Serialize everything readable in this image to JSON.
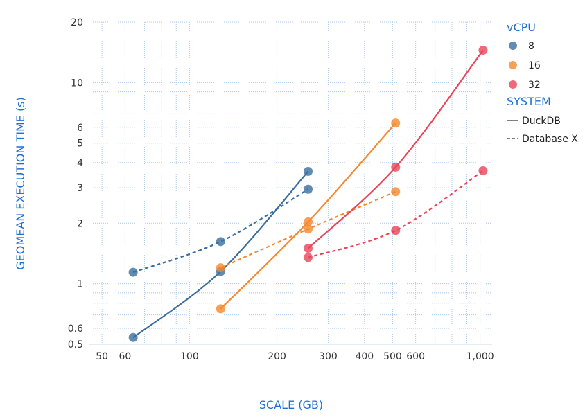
{
  "chart_data": {
    "type": "line",
    "title": "",
    "xlabel": "SCALE (GB)",
    "ylabel": "GEOMEAN EXECUTION TIME (s)",
    "x_scale": "log",
    "y_scale": "log",
    "xlim": [
      45,
      1100
    ],
    "ylim": [
      0.5,
      20
    ],
    "x_ticks": [
      50,
      60,
      100,
      200,
      300,
      400,
      500,
      600,
      1000
    ],
    "x_tick_labels": [
      "50",
      "60",
      "100",
      "200",
      "300",
      "400",
      "500",
      "600",
      "1,000"
    ],
    "y_ticks": [
      0.5,
      0.6,
      1,
      2,
      3,
      4,
      5,
      6,
      10,
      20
    ],
    "y_tick_labels": [
      "0.5",
      "0.6",
      "1",
      "2",
      "3",
      "4",
      "5",
      "6",
      "10",
      "20"
    ],
    "grid": true,
    "legend_position": "right",
    "legend": {
      "vcpu_title": "vCPU",
      "vcpu_items": [
        {
          "label": "8",
          "color": "#3a6e9e"
        },
        {
          "label": "16",
          "color": "#f5882d"
        },
        {
          "label": "32",
          "color": "#ea4457"
        }
      ],
      "system_title": "SYSTEM",
      "system_items": [
        {
          "label": "DuckDB",
          "dash": "solid"
        },
        {
          "label": "Database X",
          "dash": "dashed"
        }
      ]
    },
    "series": [
      {
        "vcpu": "8",
        "system": "DuckDB",
        "color": "#3a6e9e",
        "dash": "solid",
        "x": [
          64,
          128,
          256
        ],
        "y": [
          0.54,
          1.15,
          3.62
        ]
      },
      {
        "vcpu": "8",
        "system": "Database X",
        "color": "#3a6e9e",
        "dash": "dashed",
        "x": [
          64,
          128,
          256
        ],
        "y": [
          1.14,
          1.62,
          2.95
        ]
      },
      {
        "vcpu": "16",
        "system": "DuckDB",
        "color": "#f5882d",
        "dash": "solid",
        "x": [
          128,
          256,
          512
        ],
        "y": [
          0.75,
          2.03,
          6.3
        ]
      },
      {
        "vcpu": "16",
        "system": "Database X",
        "color": "#f5882d",
        "dash": "dashed",
        "x": [
          128,
          256,
          512
        ],
        "y": [
          1.2,
          1.87,
          2.87
        ]
      },
      {
        "vcpu": "32",
        "system": "DuckDB",
        "color": "#ea4457",
        "dash": "solid",
        "x": [
          256,
          512,
          1024
        ],
        "y": [
          1.5,
          3.8,
          14.5
        ]
      },
      {
        "vcpu": "32",
        "system": "Database X",
        "color": "#ea4457",
        "dash": "dashed",
        "x": [
          256,
          512,
          1024
        ],
        "y": [
          1.35,
          1.84,
          3.65
        ]
      }
    ]
  }
}
